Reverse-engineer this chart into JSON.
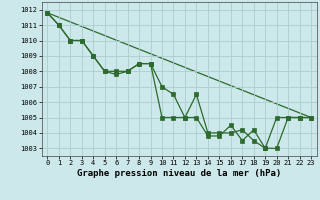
{
  "title": "Graphe pression niveau de la mer (hPa)",
  "bg_color": "#cce8ea",
  "grid_color": "#aacdd0",
  "line_color": "#2d6a2d",
  "xlim": [
    -0.5,
    23.5
  ],
  "ylim": [
    1002.5,
    1012.5
  ],
  "yticks": [
    1003,
    1004,
    1005,
    1006,
    1007,
    1008,
    1009,
    1010,
    1011,
    1012
  ],
  "xticks": [
    0,
    1,
    2,
    3,
    4,
    5,
    6,
    7,
    8,
    9,
    10,
    11,
    12,
    13,
    14,
    15,
    16,
    17,
    18,
    19,
    20,
    21,
    22,
    23
  ],
  "series1_x": [
    0,
    1,
    2,
    3,
    4,
    5,
    6,
    7,
    8,
    9,
    10,
    11,
    12,
    13,
    14,
    15,
    16,
    17,
    18,
    19,
    20,
    21,
    22,
    23
  ],
  "series1_y": [
    1011.8,
    1011.0,
    1010.0,
    1010.0,
    1009.0,
    1008.0,
    1007.8,
    1008.0,
    1008.5,
    1008.5,
    1005.0,
    1005.0,
    1005.0,
    1006.5,
    1004.0,
    1004.0,
    1004.0,
    1004.2,
    1003.5,
    1003.0,
    1003.0,
    1005.0,
    1005.0,
    1005.0
  ],
  "series2_x": [
    0,
    1,
    2,
    3,
    4,
    5,
    6,
    7,
    8,
    9,
    10,
    11,
    12,
    13,
    14,
    15,
    16,
    17,
    18,
    19,
    20,
    21,
    22,
    23
  ],
  "series2_y": [
    1011.8,
    1011.0,
    1010.0,
    1010.0,
    1009.0,
    1008.0,
    1008.0,
    1008.0,
    1008.5,
    1008.5,
    1007.0,
    1006.5,
    1005.0,
    1005.0,
    1003.8,
    1003.8,
    1004.5,
    1003.5,
    1004.2,
    1003.0,
    1005.0,
    1005.0,
    1005.0,
    1005.0
  ],
  "series3_x": [
    0,
    23
  ],
  "series3_y": [
    1011.8,
    1005.0
  ],
  "label_fontsize": 6.5,
  "tick_fontsize": 5.0
}
